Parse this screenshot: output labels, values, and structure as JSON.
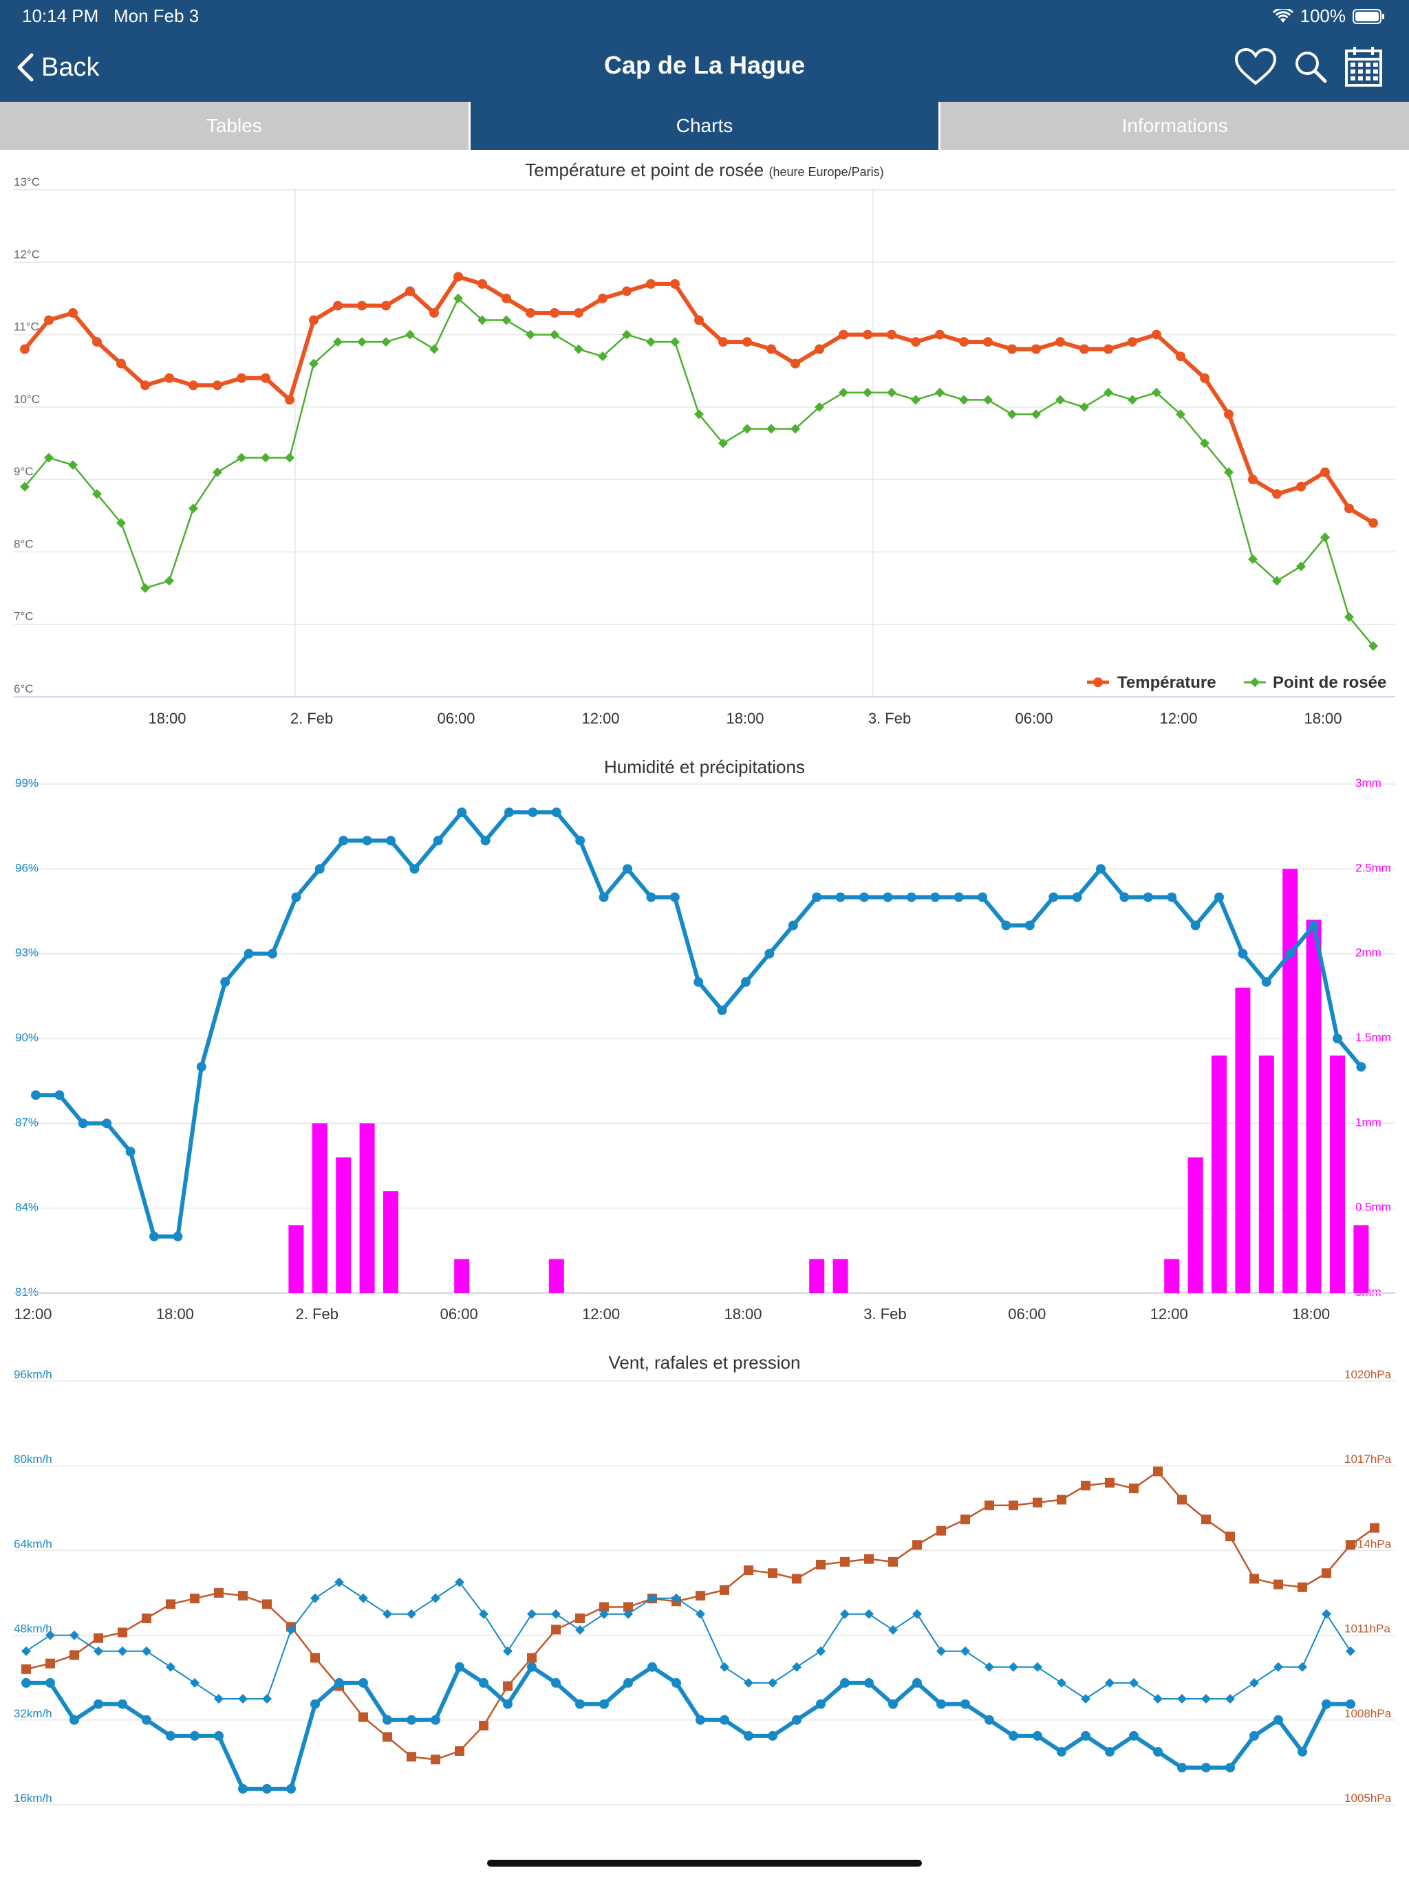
{
  "status": {
    "time": "10:14 PM",
    "date": "Mon Feb 3",
    "battery": "100%"
  },
  "nav": {
    "back_label": "Back",
    "title": "Cap de La Hague"
  },
  "tabs": [
    {
      "label": "Tables"
    },
    {
      "label": "Charts"
    },
    {
      "label": "Informations"
    }
  ],
  "icons": {
    "back": "chevron-left-icon",
    "favorite": "heart-icon",
    "search": "search-icon",
    "calendar": "calendar-icon",
    "wifi": "wifi-icon",
    "battery": "battery-icon"
  },
  "colors": {
    "nav_bg": "#1c4e7e",
    "temperature": "#e95420",
    "dewpoint": "#4cb030",
    "humidity": "#1789c7",
    "precip": "#ff00ff",
    "pressure": "#c0582a",
    "wind": "#1789c7"
  },
  "x_ticks": [
    "18:00",
    "2. Feb",
    "06:00",
    "12:00",
    "18:00",
    "3. Feb",
    "06:00",
    "12:00",
    "18:00"
  ],
  "x_ticks_humidity": [
    "12:00",
    "18:00",
    "2. Feb",
    "06:00",
    "12:00",
    "18:00",
    "3. Feb",
    "06:00",
    "12:00",
    "18:00"
  ],
  "chart_data": [
    {
      "type": "line",
      "title": "Température et point de rosée",
      "subtitle": "(heure Europe/Paris)",
      "y_ticks": [
        "13°C",
        "12°C",
        "11°C",
        "10°C",
        "9°C",
        "8°C",
        "7°C",
        "6°C"
      ],
      "ylim": [
        6,
        13
      ],
      "x_step_hours": 1,
      "x_start": "1 Feb 12:00",
      "series": [
        {
          "name": "Température",
          "marker": "circle",
          "values": [
            10.8,
            11.2,
            11.3,
            10.9,
            10.6,
            10.3,
            10.4,
            10.3,
            10.3,
            10.4,
            10.4,
            10.1,
            11.2,
            11.4,
            11.4,
            11.4,
            11.6,
            11.3,
            11.8,
            11.7,
            11.5,
            11.3,
            11.3,
            11.3,
            11.5,
            11.6,
            11.7,
            11.7,
            11.2,
            10.9,
            10.9,
            10.8,
            10.6,
            10.8,
            11.0,
            11.0,
            11.0,
            10.9,
            11.0,
            10.9,
            10.9,
            10.8,
            10.8,
            10.9,
            10.8,
            10.8,
            10.9,
            11.0,
            10.7,
            10.4,
            9.9,
            9.0,
            8.8,
            8.9,
            9.1,
            8.6,
            8.4
          ]
        },
        {
          "name": "Point de rosée",
          "marker": "diamond",
          "values": [
            8.9,
            9.3,
            9.2,
            8.8,
            8.4,
            7.5,
            7.6,
            8.6,
            9.1,
            9.3,
            9.3,
            9.3,
            10.6,
            10.9,
            10.9,
            10.9,
            11.0,
            10.8,
            11.5,
            11.2,
            11.2,
            11.0,
            11.0,
            10.8,
            10.7,
            11.0,
            10.9,
            10.9,
            9.9,
            9.5,
            9.7,
            9.7,
            9.7,
            10.0,
            10.2,
            10.2,
            10.2,
            10.1,
            10.2,
            10.1,
            10.1,
            9.9,
            9.9,
            10.1,
            10.0,
            10.2,
            10.1,
            10.2,
            9.9,
            9.5,
            9.1,
            7.9,
            7.6,
            7.8,
            8.2,
            7.1,
            6.7
          ]
        }
      ],
      "legend": "bottom-right",
      "grid": true
    },
    {
      "type": "line+bar",
      "title": "Humidité et précipitations",
      "y_ticks_left": [
        "99%",
        "96%",
        "93%",
        "90%",
        "87%",
        "84%",
        "81%"
      ],
      "y_ticks_right": [
        "3mm",
        "2.5mm",
        "2mm",
        "1.5mm",
        "1mm",
        "0.5mm",
        "0mm"
      ],
      "ylim_left": [
        81,
        99
      ],
      "ylim_right": [
        0,
        3
      ],
      "series": [
        {
          "name": "Humidité",
          "axis": "left",
          "marker": "circle",
          "values": [
            88,
            88,
            87,
            87,
            86,
            83,
            83,
            89,
            92,
            93,
            93,
            95,
            96,
            97,
            97,
            97,
            96,
            97,
            98,
            97,
            98,
            98,
            98,
            97,
            95,
            96,
            95,
            95,
            92,
            91,
            92,
            93,
            94,
            95,
            95,
            95,
            95,
            95,
            95,
            95,
            95,
            94,
            94,
            95,
            95,
            96,
            95,
            95,
            95,
            94,
            95,
            93,
            92,
            93,
            94,
            90,
            89
          ]
        },
        {
          "name": "Précipitations",
          "axis": "right",
          "type": "bar",
          "values": [
            0,
            0,
            0,
            0,
            0,
            0,
            0,
            0,
            0,
            0,
            0,
            0.4,
            1.0,
            0.8,
            1.0,
            0.6,
            0,
            0,
            0.2,
            0,
            0,
            0,
            0.2,
            0,
            0,
            0,
            0,
            0,
            0,
            0,
            0,
            0,
            0,
            0.2,
            0.2,
            0,
            0,
            0,
            0,
            0,
            0,
            0,
            0,
            0,
            0,
            0,
            0,
            0,
            0.2,
            0.8,
            1.4,
            1.8,
            1.4,
            2.5,
            2.2,
            1.4,
            0.4
          ]
        }
      ],
      "grid": true
    },
    {
      "type": "line",
      "title": "Vent, rafales et pression",
      "y_ticks_left": [
        "96km/h",
        "80km/h",
        "64km/h",
        "48km/h",
        "32km/h",
        "16km/h"
      ],
      "y_ticks_right": [
        "1020hPa",
        "1017hPa",
        "1014hPa",
        "1011hPa",
        "1008hPa",
        "1005hPa"
      ],
      "ylim_left": [
        16,
        96
      ],
      "ylim_right": [
        1005,
        1020
      ],
      "series": [
        {
          "name": "Pression",
          "axis": "right",
          "marker": "square",
          "values": [
            1009.8,
            1010.0,
            1010.3,
            1010.9,
            1011.1,
            1011.6,
            1012.1,
            1012.3,
            1012.5,
            1012.4,
            1012.1,
            1011.3,
            1010.2,
            1009.2,
            1008.1,
            1007.4,
            1006.7,
            1006.6,
            1006.9,
            1007.8,
            1009.2,
            1010.2,
            1011.2,
            1011.6,
            1012.0,
            1012.0,
            1012.3,
            1012.2,
            1012.4,
            1012.6,
            1013.3,
            1013.2,
            1013.0,
            1013.5,
            1013.6,
            1013.7,
            1013.6,
            1014.2,
            1014.7,
            1015.1,
            1015.6,
            1015.6,
            1015.7,
            1015.8,
            1016.3,
            1016.4,
            1016.2,
            1016.8,
            1015.8,
            1015.1,
            1014.5,
            1013.0,
            1012.8,
            1012.7,
            1013.2,
            1014.2,
            1014.8
          ]
        },
        {
          "name": "Rafales",
          "axis": "left",
          "marker": "diamond",
          "thin": true,
          "values": [
            45,
            48,
            48,
            45,
            45,
            45,
            42,
            39,
            36,
            36,
            36,
            49,
            55,
            58,
            55,
            52,
            52,
            55,
            58,
            52,
            45,
            52,
            52,
            49,
            52,
            52,
            55,
            55,
            52,
            42,
            39,
            39,
            42,
            45,
            52,
            52,
            49,
            52,
            45,
            45,
            42,
            42,
            42,
            39,
            36,
            39,
            39,
            36,
            36,
            36,
            36,
            39,
            42,
            42,
            52,
            45
          ]
        },
        {
          "name": "Vent",
          "axis": "left",
          "marker": "circle",
          "values": [
            39,
            39,
            32,
            35,
            35,
            32,
            29,
            29,
            29,
            19,
            19,
            19,
            35,
            39,
            39,
            32,
            32,
            32,
            42,
            39,
            35,
            42,
            39,
            35,
            35,
            39,
            42,
            39,
            32,
            32,
            29,
            29,
            32,
            35,
            39,
            39,
            35,
            39,
            35,
            35,
            32,
            29,
            29,
            26,
            29,
            26,
            29,
            26,
            23,
            23,
            23,
            29,
            32,
            26,
            35,
            35
          ]
        }
      ],
      "grid": true
    }
  ]
}
